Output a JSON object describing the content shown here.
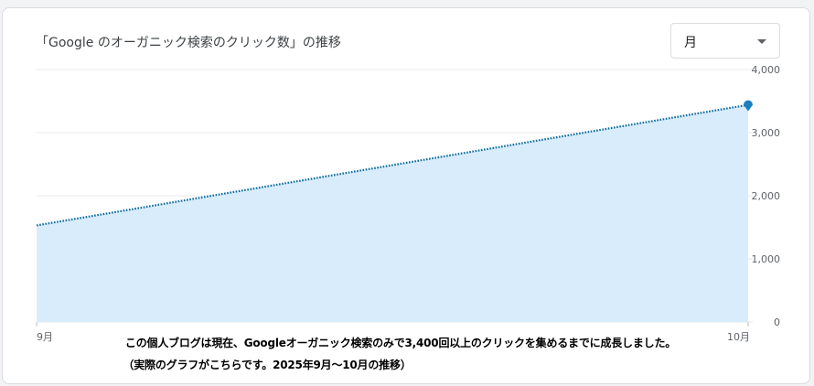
{
  "card": {
    "title": "「Google のオーガニック検索のクリック数」の推移",
    "period_select": {
      "value": "月"
    }
  },
  "caption": {
    "line1": "この個人ブログは現在、Googleオーガニック検索のみで3,400回以上のクリックを集めるまでに成長しました。",
    "line2": "（実際のグラフがこちらです。2025年9月〜10月の推移）"
  },
  "chart_data": {
    "type": "area",
    "title": "「Google のオーガニック検索のクリック数」の推移",
    "categories": [
      "9月",
      "10月"
    ],
    "series": [
      {
        "values": [
          1530,
          3440
        ],
        "color": "#1a73e8"
      }
    ],
    "ylim": [
      0,
      4000
    ],
    "yticks": [
      "0",
      "1,000",
      "2,000",
      "3,000",
      "4,000"
    ],
    "ytick_values": [
      0,
      1000,
      2000,
      3000,
      4000
    ],
    "grid": true,
    "legend": "none",
    "line_color": "#0b6b9e",
    "fill_color": "#d8ecfb",
    "marker_color": "#1a7fc0"
  }
}
